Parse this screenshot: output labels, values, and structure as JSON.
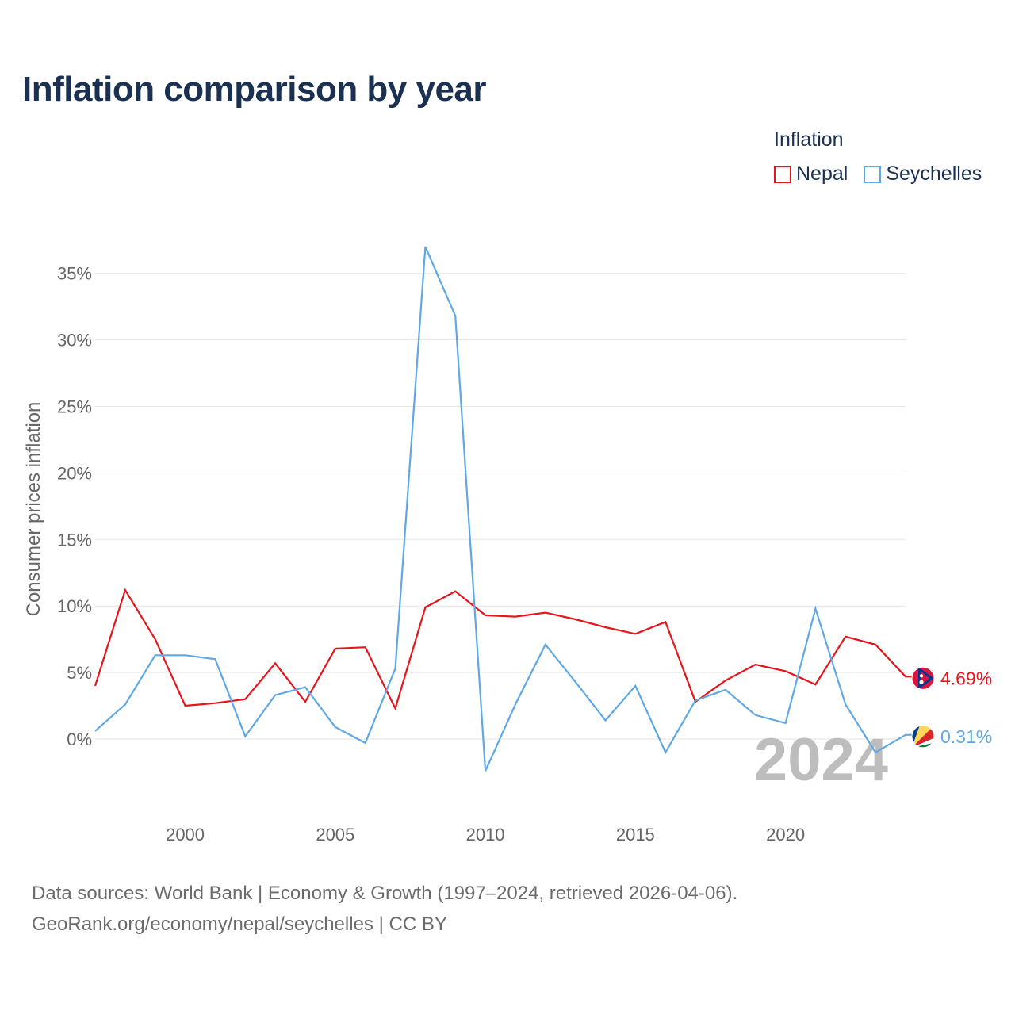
{
  "title": "Inflation comparison by year",
  "legend": {
    "title": "Inflation",
    "items": [
      {
        "label": "Nepal",
        "color": "#e8141b"
      },
      {
        "label": "Seychelles",
        "color": "#5fa8e6"
      }
    ]
  },
  "footer": {
    "line1": "Data sources: World Bank | Economy & Growth (1997–2024, retrieved 2026-04-06).",
    "line2": "GeoRank.org/economy/nepal/seychelles | CC BY"
  },
  "chart_data": {
    "type": "line",
    "title": "Inflation comparison by year",
    "xlabel": "",
    "ylabel": "Consumer prices inflation",
    "x": [
      1997,
      1998,
      1999,
      2000,
      2001,
      2002,
      2003,
      2004,
      2005,
      2006,
      2007,
      2008,
      2009,
      2010,
      2011,
      2012,
      2013,
      2014,
      2015,
      2016,
      2017,
      2018,
      2019,
      2020,
      2021,
      2022,
      2023,
      2024
    ],
    "xlim": [
      1997,
      2024
    ],
    "ylim": [
      -5,
      37
    ],
    "y_ticks": [
      {
        "value": 0,
        "label": "0%"
      },
      {
        "value": 5,
        "label": "5%"
      },
      {
        "value": 10,
        "label": "10%"
      },
      {
        "value": 15,
        "label": "15%"
      },
      {
        "value": 20,
        "label": "20%"
      },
      {
        "value": 25,
        "label": "25%"
      },
      {
        "value": 30,
        "label": "30%"
      },
      {
        "value": 35,
        "label": "35%"
      }
    ],
    "x_ticks": [
      {
        "value": 2000,
        "label": "2000"
      },
      {
        "value": 2005,
        "label": "2005"
      },
      {
        "value": 2010,
        "label": "2010"
      },
      {
        "value": 2015,
        "label": "2015"
      },
      {
        "value": 2020,
        "label": "2020"
      }
    ],
    "series": [
      {
        "name": "Nepal",
        "color": "#e8141b",
        "end_label": "4.69%",
        "flag": "nepal-flag-icon",
        "values": [
          4.0,
          11.2,
          7.5,
          2.5,
          2.7,
          3.0,
          5.7,
          2.8,
          6.8,
          6.9,
          2.3,
          9.9,
          11.1,
          9.3,
          9.2,
          9.5,
          9.0,
          8.4,
          7.9,
          8.8,
          2.8,
          4.4,
          5.6,
          5.1,
          4.1,
          7.7,
          7.1,
          4.69
        ]
      },
      {
        "name": "Seychelles",
        "color": "#5fa8e6",
        "end_label": "0.31%",
        "flag": "seychelles-flag-icon",
        "values": [
          0.6,
          2.6,
          6.3,
          6.3,
          6.0,
          0.2,
          3.3,
          3.9,
          0.9,
          -0.3,
          5.3,
          37.0,
          31.8,
          -2.4,
          2.6,
          7.1,
          4.3,
          1.4,
          4.0,
          -1.0,
          2.9,
          3.7,
          1.8,
          1.2,
          9.8,
          2.6,
          -1.0,
          0.31
        ]
      }
    ],
    "watermark": "2024"
  }
}
